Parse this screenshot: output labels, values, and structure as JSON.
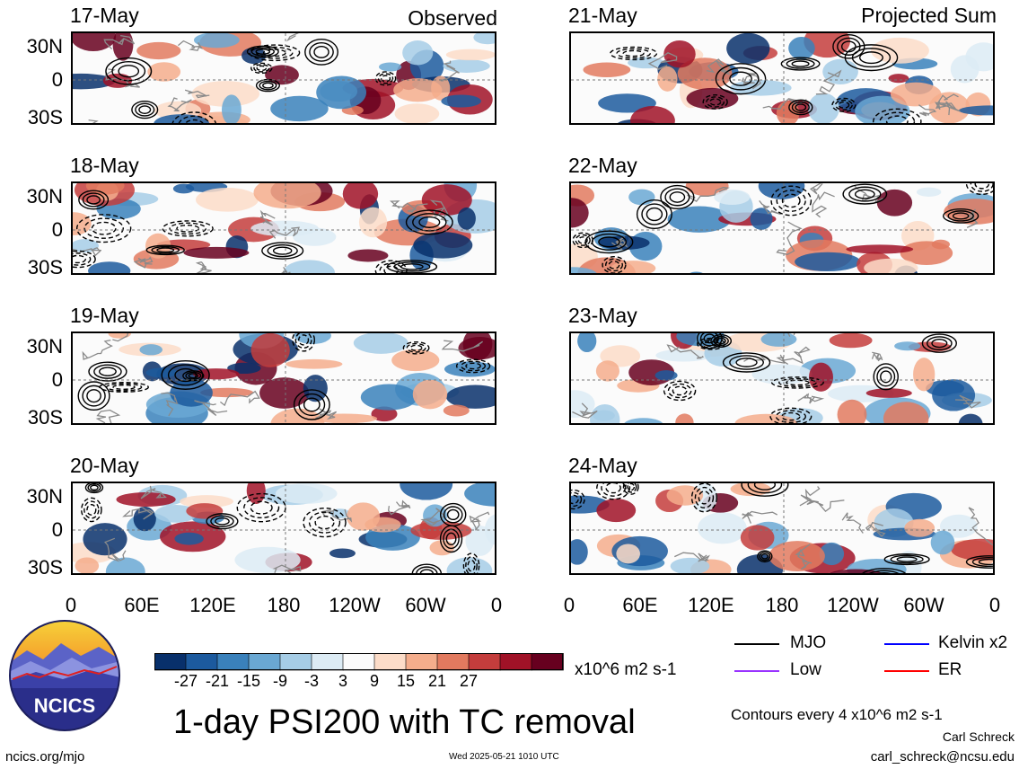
{
  "headers": {
    "observed": "Observed",
    "projected": "Projected Sum"
  },
  "ylabels": [
    "30N",
    "0",
    "30S"
  ],
  "xlabels": [
    "0",
    "60E",
    "120E",
    "180",
    "120W",
    "60W",
    "0"
  ],
  "colorbar": {
    "ticks": [
      "-27",
      "-21",
      "-15",
      "-9",
      "-3",
      "3",
      "9",
      "15",
      "21",
      "27"
    ],
    "units": "x10^6 m2 s-1",
    "colors": [
      "#08306b",
      "#1c5a9e",
      "#3a81bb",
      "#6aa8d3",
      "#a6cde6",
      "#dcebf4",
      "#fbfbfb",
      "#fcdcc8",
      "#f4ad8c",
      "#e27a5f",
      "#c43d3c",
      "#a01227",
      "#67001f"
    ]
  },
  "legend": [
    {
      "label": "MJO",
      "color": "#000000"
    },
    {
      "label": "Kelvin x2",
      "color": "#0000ff"
    },
    {
      "label": "Low",
      "color": "#9933ff"
    },
    {
      "label": "ER",
      "color": "#ff0000"
    }
  ],
  "title": "1-day PSI200 with TC removal",
  "contours_note": "Contours every 4 x10^6 m2 s-1",
  "author": "Carl Schreck",
  "email": "carl_schreck@ncsu.edu",
  "logo_text": "NCICS",
  "site": "ncics.org/mjo",
  "timestamp": "Wed 2025-05-21 1010 UTC",
  "chart_data": [
    {
      "type": "heatmap",
      "date": "17-May",
      "column": "Observed",
      "seed": 1,
      "xticks": [
        "0",
        "60E",
        "120E",
        "180",
        "120W",
        "60W",
        "0"
      ],
      "yticks": [
        "30N",
        "0",
        "30S"
      ]
    },
    {
      "type": "heatmap",
      "date": "18-May",
      "column": "Observed",
      "seed": 2,
      "xticks": [
        "0",
        "60E",
        "120E",
        "180",
        "120W",
        "60W",
        "0"
      ],
      "yticks": [
        "30N",
        "0",
        "30S"
      ]
    },
    {
      "type": "heatmap",
      "date": "19-May",
      "column": "Observed",
      "seed": 3,
      "xticks": [
        "0",
        "60E",
        "120E",
        "180",
        "120W",
        "60W",
        "0"
      ],
      "yticks": [
        "30N",
        "0",
        "30S"
      ]
    },
    {
      "type": "heatmap",
      "date": "20-May",
      "column": "Observed",
      "seed": 4,
      "xticks": [
        "0",
        "60E",
        "120E",
        "180",
        "120W",
        "60W",
        "0"
      ],
      "yticks": [
        "30N",
        "0",
        "30S"
      ]
    },
    {
      "type": "heatmap",
      "date": "21-May",
      "column": "Projected Sum",
      "seed": 5,
      "xticks": [
        "0",
        "60E",
        "120E",
        "180",
        "120W",
        "60W",
        "0"
      ],
      "yticks": [
        "30N",
        "0",
        "30S"
      ]
    },
    {
      "type": "heatmap",
      "date": "22-May",
      "column": "Projected Sum",
      "seed": 6,
      "xticks": [
        "0",
        "60E",
        "120E",
        "180",
        "120W",
        "60W",
        "0"
      ],
      "yticks": [
        "30N",
        "0",
        "30S"
      ]
    },
    {
      "type": "heatmap",
      "date": "23-May",
      "column": "Projected Sum",
      "seed": 7,
      "xticks": [
        "0",
        "60E",
        "120E",
        "180",
        "120W",
        "60W",
        "0"
      ],
      "yticks": [
        "30N",
        "0",
        "30S"
      ]
    },
    {
      "type": "heatmap",
      "date": "24-May",
      "column": "Projected Sum",
      "seed": 8,
      "xticks": [
        "0",
        "60E",
        "120E",
        "180",
        "120W",
        "60W",
        "0"
      ],
      "yticks": [
        "30N",
        "0",
        "30S"
      ]
    }
  ]
}
